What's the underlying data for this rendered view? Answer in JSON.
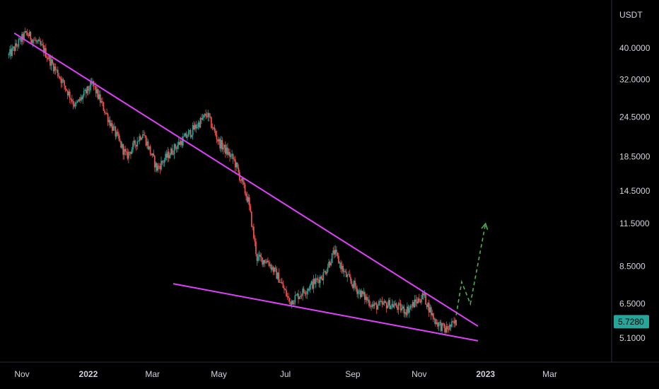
{
  "chart_data": {
    "type": "candlestick",
    "currency_label": "USDT",
    "y_scale": "log",
    "y_ticks": [
      "40.0000",
      "32.0000",
      "24.5000",
      "18.5000",
      "14.5000",
      "11.5000",
      "8.5000",
      "6.5000",
      "5.1000"
    ],
    "x_ticks": [
      {
        "label": "Nov",
        "bold": false
      },
      {
        "label": "2022",
        "bold": true
      },
      {
        "label": "Mar",
        "bold": false
      },
      {
        "label": "May",
        "bold": false
      },
      {
        "label": "Jul",
        "bold": false
      },
      {
        "label": "Sep",
        "bold": false
      },
      {
        "label": "Nov",
        "bold": false
      },
      {
        "label": "2023",
        "bold": true
      },
      {
        "label": "Mar",
        "bold": false
      }
    ],
    "last_price": "5.7280",
    "price_path": [
      [
        "2021-10-20",
        38.0
      ],
      [
        "2021-11-05",
        44.5
      ],
      [
        "2021-11-20",
        40.0
      ],
      [
        "2021-12-05",
        33.0
      ],
      [
        "2021-12-20",
        26.5
      ],
      [
        "2022-01-05",
        31.0
      ],
      [
        "2022-01-20",
        24.0
      ],
      [
        "2022-02-05",
        18.5
      ],
      [
        "2022-02-20",
        22.0
      ],
      [
        "2022-03-05",
        17.0
      ],
      [
        "2022-03-20",
        19.5
      ],
      [
        "2022-04-05",
        22.0
      ],
      [
        "2022-04-20",
        25.0
      ],
      [
        "2022-05-01",
        20.5
      ],
      [
        "2022-05-15",
        18.0
      ],
      [
        "2022-05-28",
        13.5
      ],
      [
        "2022-06-05",
        9.0
      ],
      [
        "2022-06-15",
        8.8
      ],
      [
        "2022-06-25",
        7.8
      ],
      [
        "2022-07-05",
        6.6
      ],
      [
        "2022-07-20",
        7.2
      ],
      [
        "2022-08-05",
        8.0
      ],
      [
        "2022-08-15",
        9.4
      ],
      [
        "2022-08-25",
        8.0
      ],
      [
        "2022-09-05",
        7.2
      ],
      [
        "2022-09-20",
        6.4
      ],
      [
        "2022-10-05",
        6.5
      ],
      [
        "2022-10-20",
        6.2
      ],
      [
        "2022-11-05",
        6.9
      ],
      [
        "2022-11-15",
        5.8
      ],
      [
        "2022-11-25",
        5.4
      ],
      [
        "2022-12-05",
        5.7
      ]
    ],
    "trendlines": {
      "upper": {
        "from": [
          "2021-10-25",
          44.5
        ],
        "to": [
          "2022-12-25",
          5.55
        ],
        "color": "#e040fb"
      },
      "lower": {
        "from": [
          "2022-03-20",
          7.5
        ],
        "to": [
          "2022-12-25",
          5.0
        ],
        "color": "#e040fb"
      }
    },
    "projection": {
      "color": "#4caf50",
      "points": [
        [
          "2022-12-05",
          6.0
        ],
        [
          "2022-12-10",
          7.6
        ],
        [
          "2022-12-18",
          6.5
        ],
        [
          "2023-01-01",
          11.5
        ]
      ]
    },
    "colors": {
      "up": "#26a69a",
      "down": "#ef5350",
      "background": "#000000",
      "text": "#d1d4dc",
      "badge": "#26a69a"
    }
  }
}
